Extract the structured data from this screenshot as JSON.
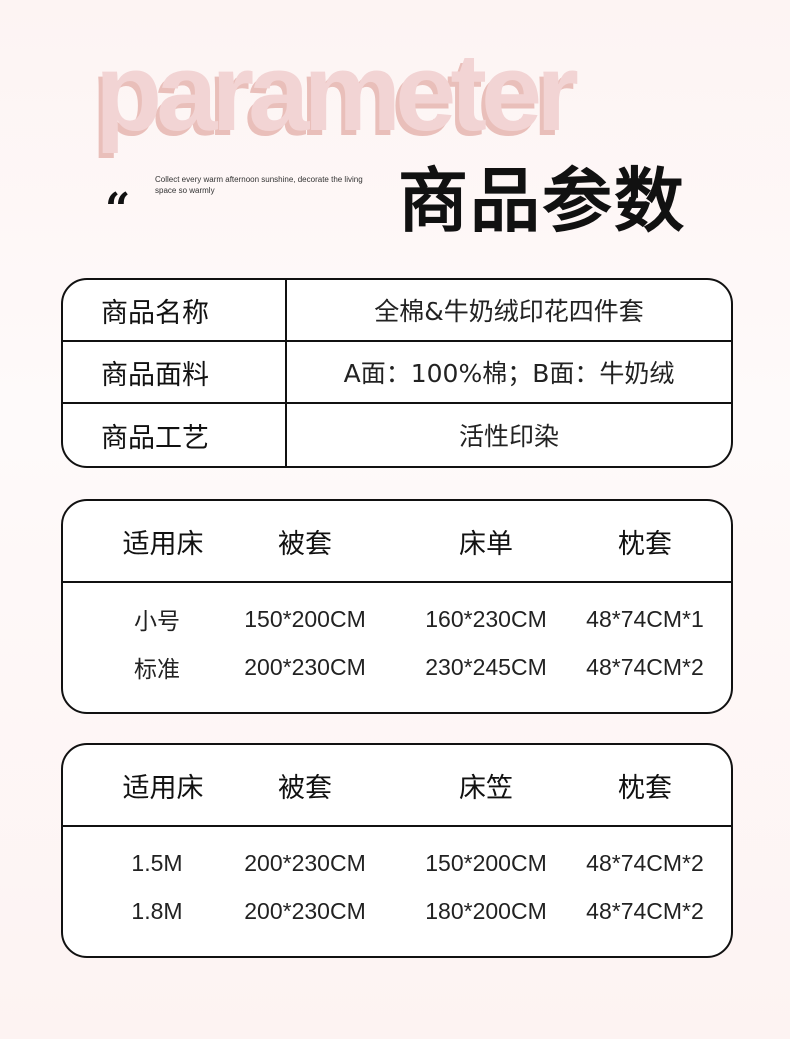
{
  "header": {
    "watermark": "parameter",
    "subtitle": "Collect every warm afternoon sunshine, decorate the living space so warmly",
    "quote_mark": "“",
    "title": "商品参数"
  },
  "info": [
    {
      "k": "商品名称",
      "v": "全棉&牛奶绒印花四件套"
    },
    {
      "k": "商品面料",
      "v": "A面：100%棉；B面：牛奶绒"
    },
    {
      "k": "商品工艺",
      "v": "活性印染"
    }
  ],
  "table1": {
    "headers": [
      "适用床",
      "被套",
      "床单",
      "枕套"
    ],
    "rows": [
      [
        "小号",
        "150*200CM",
        "160*230CM",
        "48*74CM*1"
      ],
      [
        "标准",
        "200*230CM",
        "230*245CM",
        "48*74CM*2"
      ]
    ]
  },
  "table2": {
    "headers": [
      "适用床",
      "被套",
      "床笠",
      "枕套"
    ],
    "rows": [
      [
        "1.5M",
        "200*230CM",
        "150*200CM",
        "48*74CM*2"
      ],
      [
        "1.8M",
        "200*230CM",
        "180*200CM",
        "48*74CM*2"
      ]
    ]
  }
}
